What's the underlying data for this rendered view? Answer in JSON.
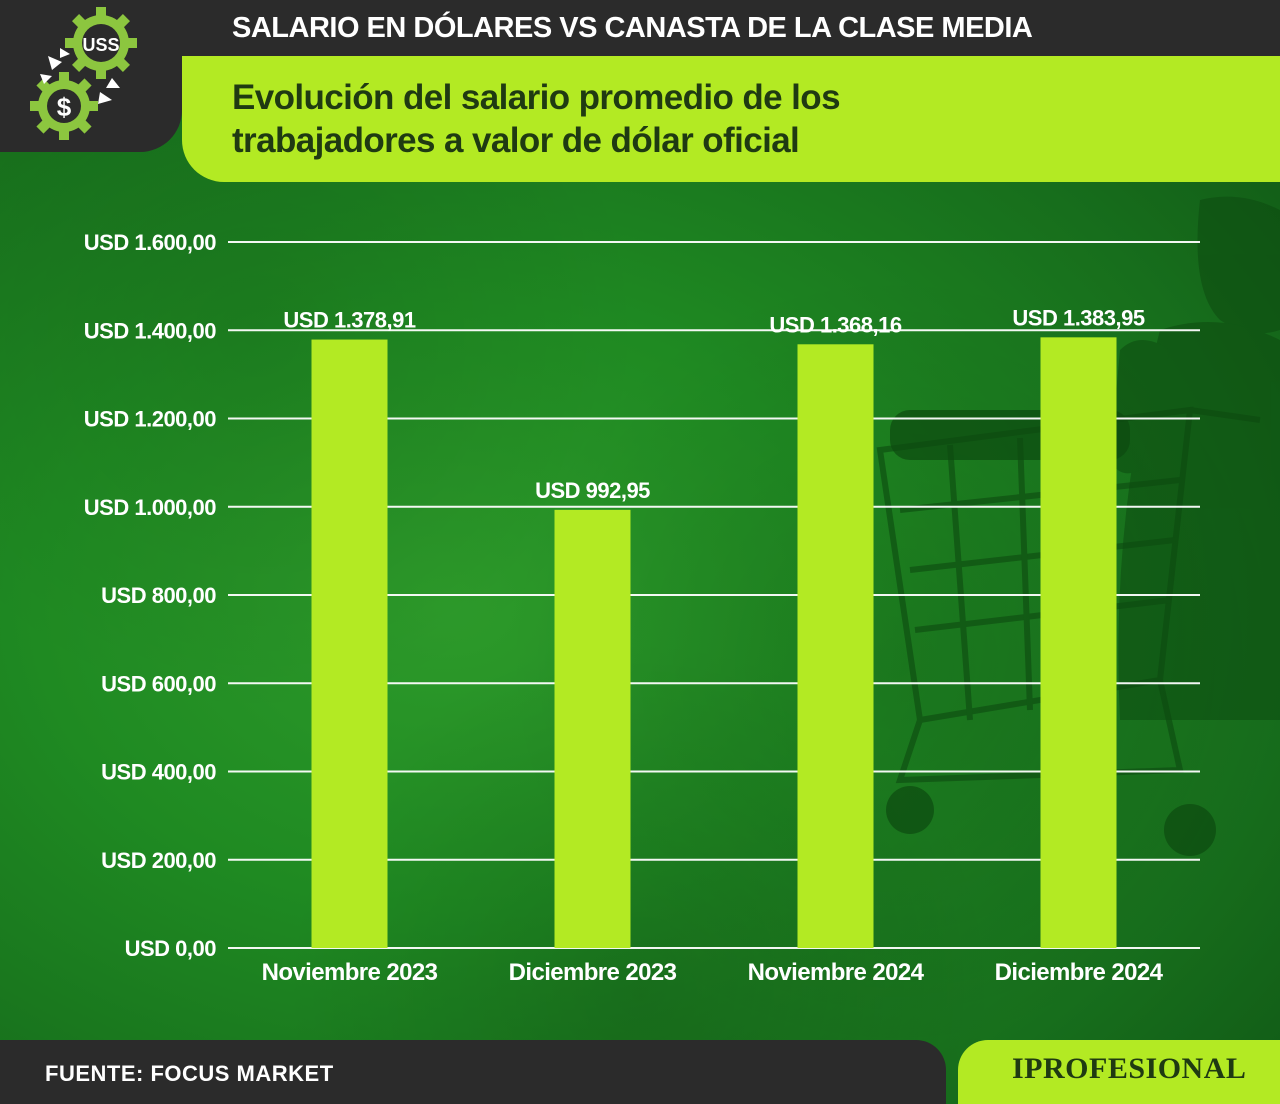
{
  "header": {
    "title": "SALARIO EN DÓLARES VS CANASTA DE LA CLASE MEDIA",
    "subtitle_line1": "Evolución del salario promedio de los",
    "subtitle_line2": "trabajadores a valor de dólar oficial"
  },
  "logo": {
    "badge_text": "USS",
    "coin_symbol": "$",
    "icon": "gears-money-icon"
  },
  "colors": {
    "bar": "#b3ea23",
    "accent": "#b3ea23",
    "dark": "#2b2b2b",
    "background": "#1f8a22",
    "gridline": "#ffffff"
  },
  "chart_data": {
    "type": "bar",
    "title": "Evolución del salario promedio de los trabajadores a valor de dólar oficial",
    "categories": [
      "Noviembre 2023",
      "Diciembre 2023",
      "Noviembre 2024",
      "Diciembre 2024"
    ],
    "values": [
      1378.91,
      992.95,
      1368.16,
      1383.95
    ],
    "value_labels": [
      "USD 1.378,91",
      "USD 992,95",
      "USD 1.368,16",
      "USD 1.383,95"
    ],
    "ylim": [
      0,
      1600
    ],
    "yticks": [
      0,
      200,
      400,
      600,
      800,
      1000,
      1200,
      1400,
      1600
    ],
    "ytick_labels": [
      "USD 0,00",
      "USD 200,00",
      "USD 400,00",
      "USD 600,00",
      "USD 800,00",
      "USD 1.000,00",
      "USD 1.200,00",
      "USD 1.400,00",
      "USD 1.600,00"
    ],
    "grid": true,
    "legend": "none"
  },
  "footer": {
    "source": "FUENTE: FOCUS MARKET",
    "brand": "IPROFESIONAL"
  }
}
